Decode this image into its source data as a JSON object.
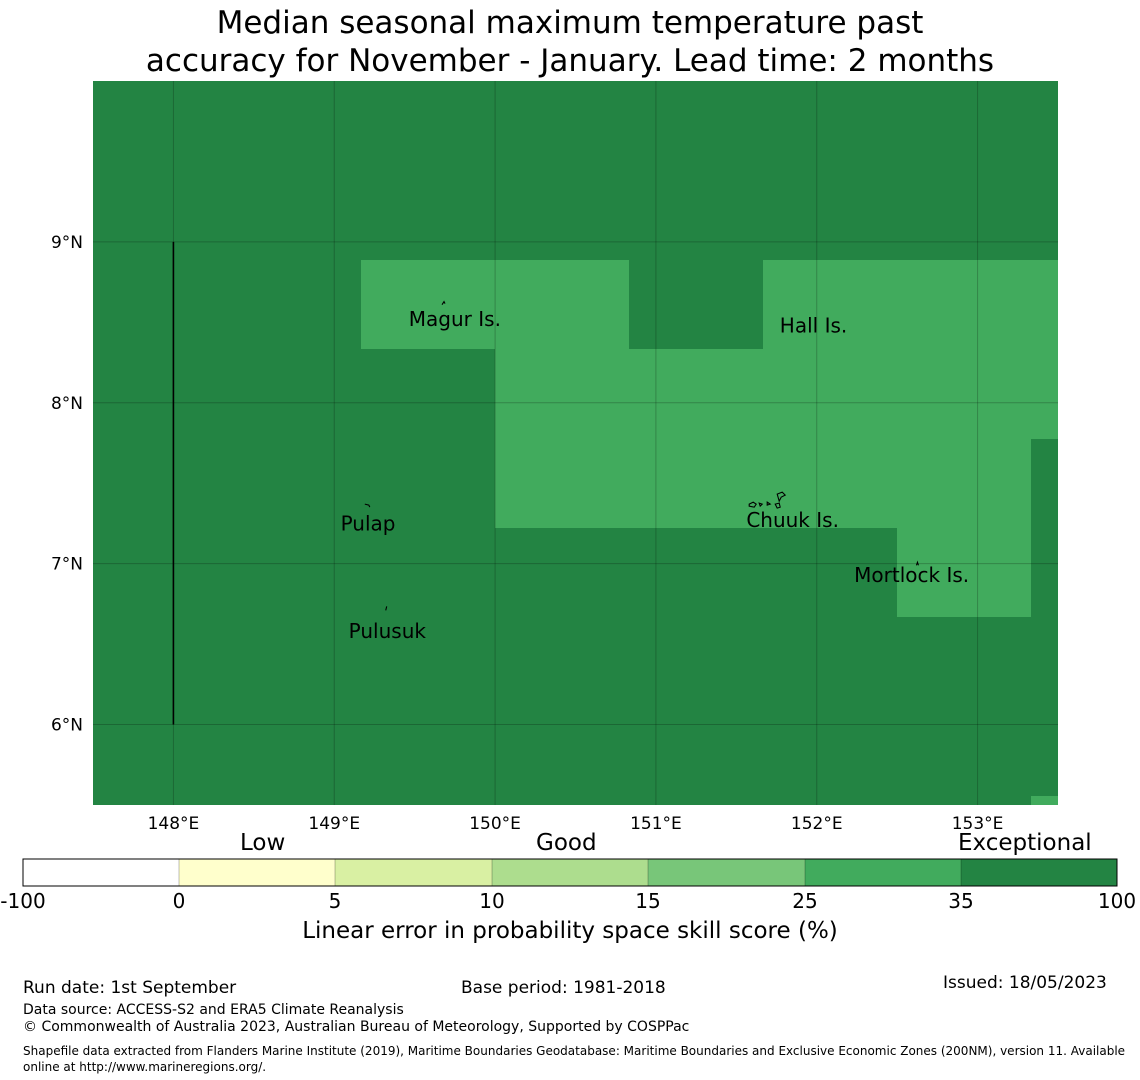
{
  "title": {
    "line1": "Median seasonal maximum temperature past",
    "line2": "accuracy for November - January. Lead time: 2 months"
  },
  "map": {
    "lon_ticks": [
      "148°E",
      "149°E",
      "150°E",
      "151°E",
      "152°E",
      "153°E"
    ],
    "lat_ticks": [
      "9°N",
      "8°N",
      "7°N",
      "6°N"
    ],
    "lon_range": [
      147.5,
      153.5
    ],
    "lat_range": [
      5.5,
      10.0
    ],
    "grid": true,
    "colors": {
      "exceptional": "#238443",
      "good_high": "#41ab5d"
    },
    "places": [
      {
        "name": "Magur Is.",
        "lon": 149.75,
        "lat": 8.52
      },
      {
        "name": "Hall Is.",
        "lon": 151.98,
        "lat": 8.48
      },
      {
        "name": "Pulap",
        "lon": 149.21,
        "lat": 7.25
      },
      {
        "name": "Chuuk Is.",
        "lon": 151.85,
        "lat": 7.27
      },
      {
        "name": "Mortlock Is.",
        "lon": 152.59,
        "lat": 6.93
      },
      {
        "name": "Pulusuk",
        "lon": 149.33,
        "lat": 6.58
      }
    ]
  },
  "colorbar": {
    "categories": [
      "Low",
      "Good",
      "Exceptional"
    ],
    "tick_labels": [
      "-100",
      "0",
      "5",
      "10",
      "15",
      "25",
      "35",
      "100"
    ],
    "colors": [
      "#ffffff",
      "#ffffcc",
      "#d9f0a3",
      "#addd8e",
      "#78c679",
      "#41ab5d",
      "#238443"
    ],
    "label": "Linear error in probability space skill score (%)"
  },
  "footer": {
    "run_date": "Run date: 1st September",
    "base_period": "Base period: 1981-2018",
    "issued": "Issued: 18/05/2023",
    "data_source": "Data source: ACCESS-S2 and ERA5 Climate Reanalysis",
    "copyright": "© Commonwealth of Australia 2023, Australian Bureau of Meteorology, Supported by COSPPac",
    "shapefile_line1": "Shapefile data extracted from Flanders Marine Institute (2019), Maritime Boundaries Geodatabase: Maritime Boundaries and Exclusive Economic Zones (200NM), version 11. Available",
    "shapefile_line2": "online at http://www.marineregions.org/."
  }
}
